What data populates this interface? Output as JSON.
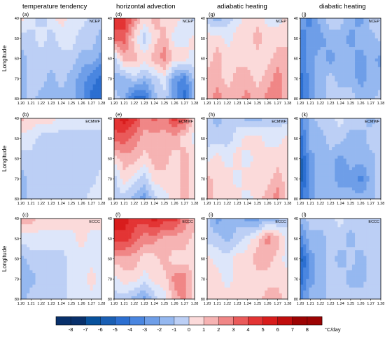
{
  "figure": {
    "column_titles": [
      "temperature tendency",
      "horizontal advection",
      "adiabatic heating",
      "diabatic heating"
    ],
    "ylabel": "Longitude",
    "yticks": [
      40,
      50,
      60,
      70,
      80
    ],
    "xticks": [
      "1.20",
      "1.21",
      "1.22",
      "1.23",
      "1.24",
      "1.25",
      "1.26",
      "1.27",
      "1.28"
    ],
    "colorbar": {
      "unit_label": "°C/day",
      "ticks": [
        -8,
        -7,
        -6,
        -5,
        -4,
        -3,
        -2,
        -1,
        0,
        1,
        2,
        3,
        4,
        5,
        6,
        7,
        8
      ],
      "colors": {
        "-8": "#08306b",
        "-7": "#08519c",
        "-6": "#1a5fb4",
        "-5": "#2c6fd1",
        "-4": "#4a86e0",
        "-3": "#6e9ee8",
        "-2": "#95b8f0",
        "-1": "#bccff5",
        "0": "#dde6fa",
        "1": "#fbdada",
        "2": "#f6b3b3",
        "3": "#f08686",
        "4": "#ea5a5a",
        "5": "#e33434",
        "6": "#d81c1c",
        "7": "#c00d0d",
        "8": "#9c0303"
      }
    }
  },
  "chart_data": [
    {
      "type": "heatmap",
      "panel": "(a)",
      "source": "NCEP",
      "title": "temperature tendency",
      "ylabel": "Longitude",
      "x": [
        "1.20",
        "1.21",
        "1.22",
        "1.23",
        "1.24",
        "1.25",
        "1.26",
        "1.27",
        "1.28"
      ],
      "y": [
        40,
        50,
        60,
        70,
        80
      ],
      "unit": "°C/day",
      "z": [
        [
          1,
          0,
          -1,
          0,
          1,
          0,
          0,
          -1,
          -1
        ],
        [
          -1,
          -1,
          0,
          -1,
          0,
          0,
          -1,
          -1,
          -2
        ],
        [
          -2,
          -1,
          -1,
          -1,
          -1,
          -1,
          -2,
          -2,
          -3
        ],
        [
          -2,
          -1,
          -1,
          -2,
          -1,
          -2,
          -3,
          -4,
          -5
        ],
        [
          -2,
          -1,
          -2,
          -2,
          -2,
          -2,
          -3,
          -5,
          -5
        ]
      ]
    },
    {
      "type": "heatmap",
      "panel": "(d)",
      "source": "NCEP",
      "title": "horizontal advection",
      "x": [
        "1.20",
        "1.21",
        "1.22",
        "1.23",
        "1.24",
        "1.25",
        "1.26",
        "1.27",
        "1.28"
      ],
      "y": [
        40,
        50,
        60,
        70,
        80
      ],
      "unit": "°C/day",
      "z": [
        [
          5,
          5,
          3,
          1,
          2,
          1,
          1,
          0,
          -1
        ],
        [
          4,
          4,
          1,
          -1,
          1,
          2,
          0,
          0,
          1
        ],
        [
          -1,
          2,
          2,
          1,
          2,
          3,
          1,
          1,
          0
        ],
        [
          -2,
          -2,
          -1,
          -2,
          -1,
          0,
          -3,
          -4,
          -1
        ],
        [
          -1,
          -2,
          -5,
          -5,
          -2,
          -1,
          -3,
          -5,
          -2
        ]
      ]
    },
    {
      "type": "heatmap",
      "panel": "(g)",
      "source": "NCEP",
      "title": "adiabatic heating",
      "x": [
        "1.20",
        "1.21",
        "1.22",
        "1.23",
        "1.24",
        "1.25",
        "1.26",
        "1.27",
        "1.28"
      ],
      "y": [
        40,
        50,
        60,
        70,
        80
      ],
      "unit": "°C/day",
      "z": [
        [
          -1,
          -2,
          -1,
          0,
          1,
          1,
          0,
          0,
          1
        ],
        [
          1,
          1,
          0,
          1,
          1,
          2,
          1,
          1,
          1
        ],
        [
          1,
          2,
          1,
          1,
          1,
          1,
          1,
          2,
          2
        ],
        [
          2,
          2,
          1,
          2,
          2,
          1,
          2,
          3,
          2
        ],
        [
          2,
          3,
          2,
          2,
          3,
          2,
          3,
          3,
          2
        ]
      ]
    },
    {
      "type": "heatmap",
      "panel": "(j)",
      "source": "NCEP",
      "title": "diabatic heating",
      "x": [
        "1.20",
        "1.21",
        "1.22",
        "1.23",
        "1.24",
        "1.25",
        "1.26",
        "1.27",
        "1.28"
      ],
      "y": [
        40,
        50,
        60,
        70,
        80
      ],
      "unit": "°C/day",
      "z": [
        [
          -3,
          -4,
          -2,
          -1,
          -1,
          -2,
          -3,
          -1,
          -1
        ],
        [
          -4,
          -3,
          -3,
          -2,
          -2,
          -3,
          -2,
          -2,
          -1
        ],
        [
          -4,
          -3,
          -2,
          -3,
          -2,
          -2,
          -3,
          -2,
          -3
        ],
        [
          -5,
          -3,
          -2,
          -1,
          -2,
          -2,
          -3,
          -2,
          -2
        ],
        [
          -5,
          -3,
          -2,
          -1,
          -1,
          -1,
          -2,
          -2,
          -1
        ]
      ]
    },
    {
      "type": "heatmap",
      "panel": "(b)",
      "source": "ECMWF",
      "title": "temperature tendency",
      "ylabel": "Longitude",
      "x": [
        "1.20",
        "1.21",
        "1.22",
        "1.23",
        "1.24",
        "1.25",
        "1.26",
        "1.27",
        "1.28"
      ],
      "y": [
        40,
        50,
        60,
        70,
        80
      ],
      "unit": "°C/day",
      "z": [
        [
          2,
          1,
          1,
          1,
          0,
          0,
          0,
          0,
          0
        ],
        [
          0,
          0,
          -1,
          -1,
          -1,
          -1,
          -1,
          -1,
          -1
        ],
        [
          -1,
          -1,
          -1,
          -1,
          -1,
          -1,
          -1,
          -1,
          -1
        ],
        [
          -2,
          -1,
          -1,
          -1,
          -1,
          -1,
          -1,
          -1,
          0
        ],
        [
          -2,
          -1,
          -1,
          -1,
          -1,
          -1,
          -1,
          0,
          0
        ]
      ]
    },
    {
      "type": "heatmap",
      "panel": "(e)",
      "source": "ECMWF",
      "title": "horizontal advection",
      "x": [
        "1.20",
        "1.21",
        "1.22",
        "1.23",
        "1.24",
        "1.25",
        "1.26",
        "1.27",
        "1.28"
      ],
      "y": [
        40,
        50,
        60,
        70,
        80
      ],
      "unit": "°C/day",
      "z": [
        [
          5,
          6,
          5,
          3,
          4,
          3,
          5,
          4,
          1
        ],
        [
          4,
          4,
          3,
          2,
          2,
          2,
          2,
          1,
          0
        ],
        [
          1,
          2,
          2,
          1,
          2,
          2,
          1,
          2,
          1
        ],
        [
          -1,
          1,
          0,
          -1,
          1,
          1,
          1,
          2,
          1
        ],
        [
          -1,
          -1,
          -2,
          -3,
          -1,
          0,
          1,
          2,
          1
        ]
      ]
    },
    {
      "type": "heatmap",
      "panel": "(h)",
      "source": "ECMWF",
      "title": "adiabatic heating",
      "x": [
        "1.20",
        "1.21",
        "1.22",
        "1.23",
        "1.24",
        "1.25",
        "1.26",
        "1.27",
        "1.28"
      ],
      "y": [
        40,
        50,
        60,
        70,
        80
      ],
      "unit": "°C/day",
      "z": [
        [
          -1,
          -2,
          -1,
          -1,
          -2,
          -2,
          -1,
          -1,
          -1
        ],
        [
          -1,
          -1,
          -1,
          0,
          1,
          1,
          0,
          0,
          1
        ],
        [
          0,
          1,
          0,
          1,
          0,
          1,
          1,
          1,
          1
        ],
        [
          2,
          1,
          1,
          0,
          1,
          1,
          1,
          2,
          1
        ],
        [
          2,
          1,
          1,
          1,
          0,
          1,
          2,
          3,
          1
        ]
      ]
    },
    {
      "type": "heatmap",
      "panel": "(k)",
      "source": "ECMWF",
      "title": "diabatic heating",
      "x": [
        "1.20",
        "1.21",
        "1.22",
        "1.23",
        "1.24",
        "1.25",
        "1.26",
        "1.27",
        "1.28"
      ],
      "y": [
        40,
        50,
        60,
        70,
        80
      ],
      "unit": "°C/day",
      "z": [
        [
          -4,
          -2,
          -1,
          -1,
          0,
          -1,
          -1,
          -2,
          -1
        ],
        [
          -5,
          -2,
          -2,
          -1,
          -1,
          -2,
          -2,
          -1,
          -1
        ],
        [
          -6,
          -3,
          -2,
          -2,
          -3,
          -2,
          -2,
          -2,
          -1
        ],
        [
          -6,
          -3,
          -2,
          -2,
          -3,
          -3,
          -4,
          -2,
          -1
        ],
        [
          -5,
          -3,
          -2,
          -2,
          -2,
          -2,
          -2,
          -2,
          -1
        ]
      ]
    },
    {
      "type": "heatmap",
      "panel": "(c)",
      "source": "ECCC",
      "title": "temperature tendency",
      "ylabel": "Longitude",
      "x": [
        "1.20",
        "1.21",
        "1.22",
        "1.23",
        "1.24",
        "1.25",
        "1.26",
        "1.27",
        "1.28"
      ],
      "y": [
        40,
        50,
        60,
        70,
        80
      ],
      "unit": "°C/day",
      "z": [
        [
          2,
          2,
          1,
          1,
          1,
          1,
          1,
          1,
          1
        ],
        [
          0,
          0,
          0,
          0,
          0,
          0,
          1,
          0,
          0
        ],
        [
          -2,
          -1,
          -1,
          -1,
          -1,
          0,
          0,
          0,
          0
        ],
        [
          -2,
          -2,
          -1,
          -1,
          -1,
          0,
          0,
          1,
          0
        ],
        [
          -2,
          -1,
          -1,
          -1,
          -1,
          0,
          0,
          0,
          0
        ]
      ]
    },
    {
      "type": "heatmap",
      "panel": "(f)",
      "source": "ECCC",
      "title": "horizontal advection",
      "x": [
        "1.20",
        "1.21",
        "1.22",
        "1.23",
        "1.24",
        "1.25",
        "1.26",
        "1.27",
        "1.28"
      ],
      "y": [
        40,
        50,
        60,
        70,
        80
      ],
      "unit": "°C/day",
      "z": [
        [
          6,
          6,
          5,
          5,
          6,
          5,
          5,
          3,
          2
        ],
        [
          5,
          5,
          4,
          3,
          3,
          2,
          2,
          2,
          1
        ],
        [
          2,
          2,
          2,
          1,
          1,
          2,
          1,
          1,
          1
        ],
        [
          0,
          1,
          1,
          0,
          1,
          1,
          3,
          3,
          1
        ],
        [
          -1,
          -1,
          -2,
          -3,
          -1,
          0,
          2,
          3,
          1
        ]
      ]
    },
    {
      "type": "heatmap",
      "panel": "(i)",
      "source": "ECCC",
      "title": "adiabatic heating",
      "x": [
        "1.20",
        "1.21",
        "1.22",
        "1.23",
        "1.24",
        "1.25",
        "1.26",
        "1.27",
        "1.28"
      ],
      "y": [
        40,
        50,
        60,
        70,
        80
      ],
      "unit": "°C/day",
      "z": [
        [
          -1,
          -3,
          -2,
          -2,
          -3,
          -3,
          -2,
          -2,
          -1
        ],
        [
          -1,
          -1,
          -2,
          -1,
          0,
          1,
          3,
          2,
          0
        ],
        [
          1,
          0,
          0,
          1,
          1,
          2,
          2,
          1,
          0
        ],
        [
          1,
          1,
          0,
          1,
          1,
          1,
          1,
          1,
          1
        ],
        [
          1,
          1,
          1,
          1,
          1,
          1,
          2,
          2,
          1
        ]
      ]
    },
    {
      "type": "heatmap",
      "panel": "(l)",
      "source": "ECCC",
      "title": "diabatic heating",
      "x": [
        "1.20",
        "1.21",
        "1.22",
        "1.23",
        "1.24",
        "1.25",
        "1.26",
        "1.27",
        "1.28"
      ],
      "y": [
        40,
        50,
        60,
        70,
        80
      ],
      "unit": "°C/day",
      "z": [
        [
          -2,
          -1,
          -1,
          -1,
          0,
          -1,
          -1,
          -1,
          -1
        ],
        [
          -4,
          -2,
          -2,
          -1,
          -1,
          -2,
          -1,
          -1,
          -1
        ],
        [
          -6,
          -3,
          -2,
          -1,
          -2,
          -1,
          -2,
          -1,
          -1
        ],
        [
          -5,
          -3,
          -2,
          -1,
          -1,
          -2,
          -2,
          -1,
          -1
        ],
        [
          -4,
          -2,
          -2,
          -1,
          -1,
          -1,
          -1,
          -1,
          -1
        ]
      ]
    }
  ]
}
